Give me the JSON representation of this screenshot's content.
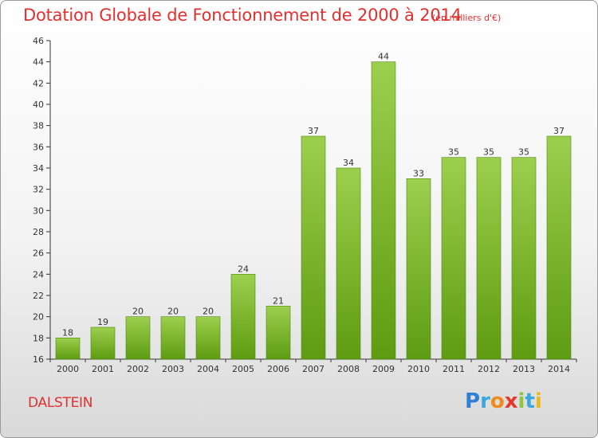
{
  "title": "Dotation Globale de Fonctionnement de 2000 à 2014",
  "subtitle": "(en milliers d'€)",
  "commune": "DALSTEIN",
  "logo": "Proxiti",
  "colors": {
    "title": "#e0302f",
    "bar_top": "#9ccf4e",
    "bar_bottom": "#5e9b12",
    "axis": "#333333"
  },
  "chart_data": {
    "type": "bar",
    "title": "Dotation Globale de Fonctionnement de 2000 à 2014",
    "subtitle": "(en milliers d'€)",
    "xlabel": "",
    "ylabel": "",
    "categories": [
      "2000",
      "2001",
      "2002",
      "2003",
      "2004",
      "2005",
      "2006",
      "2007",
      "2008",
      "2009",
      "2010",
      "2011",
      "2012",
      "2013",
      "2014"
    ],
    "values": [
      18,
      19,
      20,
      20,
      20,
      24,
      21,
      37,
      34,
      44,
      33,
      35,
      35,
      35,
      37
    ],
    "ylim": [
      16,
      46
    ],
    "yticks": [
      16,
      18,
      20,
      22,
      24,
      26,
      28,
      30,
      32,
      34,
      36,
      38,
      40,
      42,
      44,
      46
    ],
    "grid": false,
    "data_labels": true
  }
}
